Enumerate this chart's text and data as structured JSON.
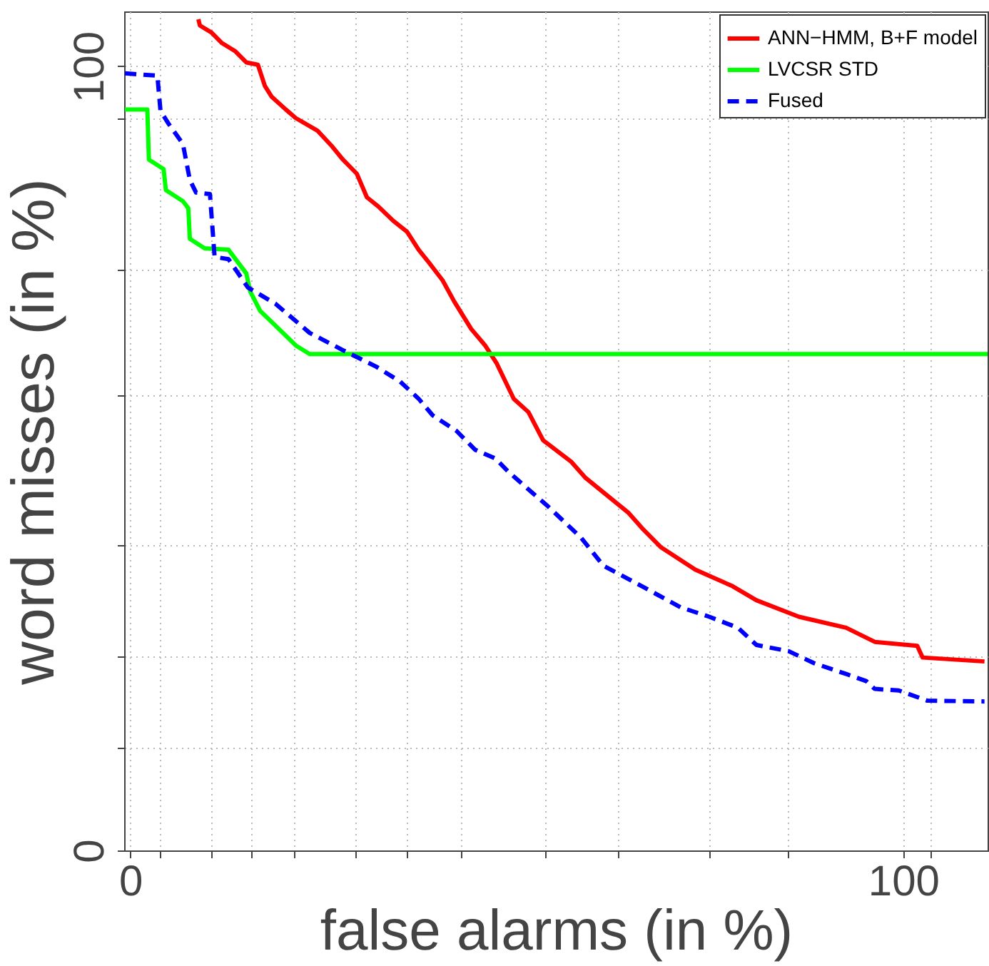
{
  "chart_data": {
    "type": "line",
    "xlabel": "false alarms (in %)",
    "ylabel": "word misses (in %)",
    "xlim": [
      -0.8,
      110.9
    ],
    "ylim": [
      0,
      107
    ],
    "xticks": [
      0,
      {
        "value": 3.9,
        "label": null
      },
      {
        "value": 10.5,
        "label": null
      },
      {
        "value": 15.7,
        "label": null
      },
      {
        "value": 21.2,
        "label": null
      },
      {
        "value": 29.2,
        "label": null
      },
      {
        "value": 35.8,
        "label": null
      },
      {
        "value": 42.8,
        "label": null
      },
      {
        "value": 53.7,
        "label": null
      },
      {
        "value": 63.1,
        "label": null
      },
      {
        "value": 74.9,
        "label": null
      },
      {
        "value": 85.1,
        "label": null
      },
      100,
      {
        "value": 103.5,
        "label": null
      }
    ],
    "yticks": [
      0,
      {
        "value": 13.1,
        "label": null
      },
      {
        "value": 24.8,
        "label": null
      },
      {
        "value": 39.0,
        "label": null
      },
      {
        "value": 58.0,
        "label": null
      },
      {
        "value": 74.1,
        "label": null
      },
      {
        "value": 93.3,
        "label": null
      },
      100
    ],
    "grid": true,
    "legend": "top right",
    "series": [
      {
        "name": "ANN−HMM, B+F model",
        "color": "#ff0000",
        "line_style": "solid",
        "x": [
          8.8,
          9.0,
          10.5,
          11.8,
          13.6,
          15.0,
          16.5,
          17.4,
          18.3,
          20.1,
          21.4,
          24.2,
          26.0,
          27.5,
          29.3,
          30.6,
          32.1,
          34.0,
          35.8,
          37.3,
          38.6,
          40.4,
          41.9,
          44.1,
          45.9,
          47.4,
          49.6,
          51.5,
          53.4,
          57.0,
          58.9,
          64.4,
          66.2,
          68.6,
          73.1,
          77.9,
          81.0,
          86.5,
          92.6,
          96.3,
          101.8,
          102.5,
          110.5
        ],
        "values": [
          106,
          105.2,
          104.3,
          103.0,
          101.9,
          100.5,
          100.2,
          97.5,
          96.1,
          94.5,
          93.4,
          91.8,
          89.9,
          88.1,
          86.3,
          83.3,
          82.1,
          80.3,
          78.9,
          76.6,
          75.0,
          72.7,
          70.0,
          66.5,
          64.4,
          62.1,
          57.6,
          55.9,
          52.3,
          49.6,
          47.5,
          43.1,
          41.1,
          38.7,
          35.8,
          33.7,
          31.9,
          29.8,
          28.4,
          26.6,
          26.1,
          24.6,
          24.1
        ]
      },
      {
        "name": "LVCSR STD",
        "color": "#00ff00",
        "line_style": "solid",
        "x": [
          -0.7,
          2.2,
          2.4,
          4.3,
          4.6,
          6.8,
          7.5,
          7.7,
          9.6,
          12.7,
          15.0,
          15.5,
          16.8,
          18.7,
          21.4,
          23.2,
          110.9
        ],
        "values": [
          94.5,
          94.5,
          88.1,
          86.9,
          84.2,
          82.8,
          81.9,
          78.0,
          76.8,
          76.6,
          73.6,
          71.3,
          68.8,
          67.0,
          64.4,
          63.3,
          63.3
        ]
      },
      {
        "name": "Fused",
        "color": "#0000ff",
        "line_style": "dashed",
        "x": [
          -0.7,
          3.5,
          3.9,
          5.0,
          6.8,
          7.7,
          8.5,
          10.3,
          10.9,
          12.7,
          15.2,
          18.8,
          23.2,
          27.5,
          31.8,
          34.9,
          37.3,
          39.1,
          42.2,
          44.6,
          47.2,
          49.0,
          53.9,
          58.3,
          61.2,
          65.6,
          71.2,
          74.9,
          78.6,
          81.0,
          85.2,
          88.4,
          92.6,
          95.2,
          96.3,
          99.4,
          103.1,
          110.5
        ],
        "values": [
          99.1,
          98.8,
          94.3,
          92.6,
          90.1,
          85.5,
          83.9,
          83.7,
          75.7,
          75.4,
          71.8,
          69.7,
          66.0,
          63.8,
          61.7,
          59.8,
          57.6,
          55.5,
          53.5,
          51.1,
          50.0,
          48.2,
          44.0,
          39.9,
          36.3,
          34.0,
          31.0,
          29.8,
          28.4,
          26.2,
          25.4,
          23.9,
          22.5,
          21.6,
          20.6,
          20.4,
          19.1,
          19.0
        ]
      }
    ]
  }
}
